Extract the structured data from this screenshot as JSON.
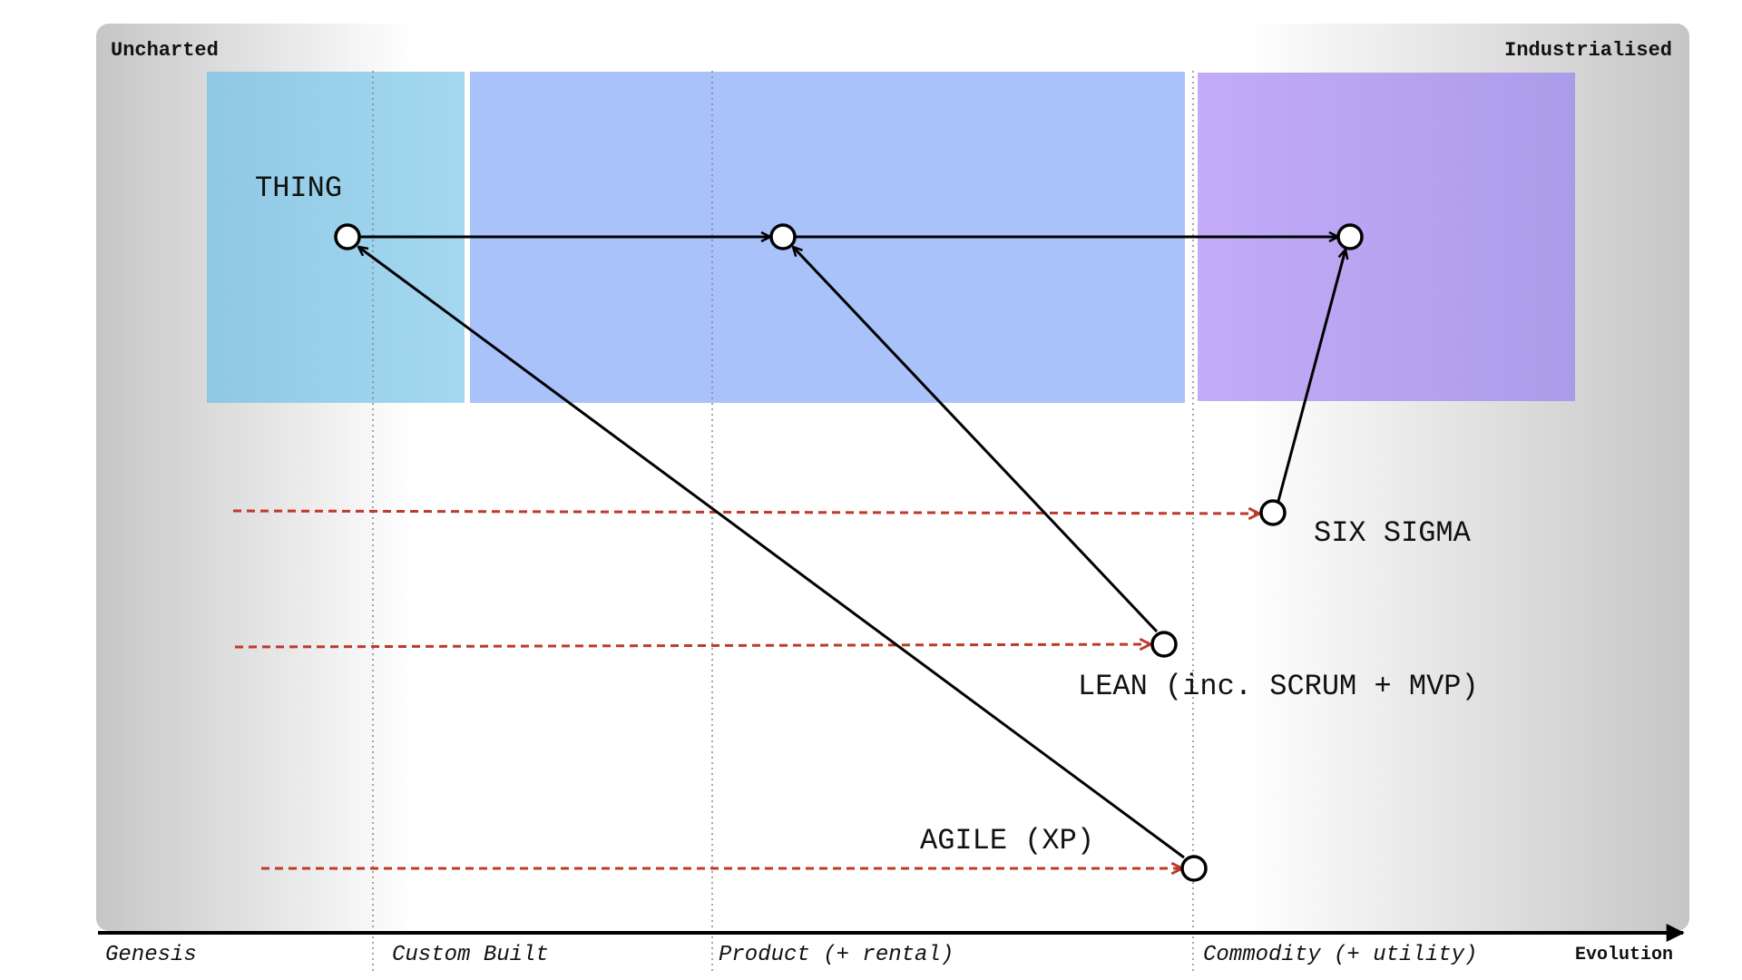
{
  "map": {
    "corner_left": "Uncharted",
    "corner_right": "Industrialised",
    "axis_label": "Evolution",
    "stages": [
      {
        "id": "genesis",
        "label": "Genesis"
      },
      {
        "id": "custom",
        "label": "Custom Built"
      },
      {
        "id": "product",
        "label": "Product (+ rental)"
      },
      {
        "id": "commodity",
        "label": "Commodity (+ utility)"
      }
    ]
  },
  "zones": [
    {
      "id": "zone-genesis",
      "color": "#91CBE8"
    },
    {
      "id": "zone-product",
      "color": "#A9C3FA"
    },
    {
      "id": "zone-commodity",
      "color": "#B9A7F5"
    }
  ],
  "nodes": [
    {
      "id": "thing",
      "label": "THING"
    },
    {
      "id": "thing-product",
      "label": ""
    },
    {
      "id": "thing-commodity",
      "label": ""
    },
    {
      "id": "six-sigma",
      "label": "SIX SIGMA"
    },
    {
      "id": "lean",
      "label": "LEAN (inc. SCRUM + MVP)"
    },
    {
      "id": "agile",
      "label": "AGILE (XP)"
    }
  ],
  "edges": [
    {
      "from": "thing",
      "to": "thing-product",
      "type": "evolution"
    },
    {
      "from": "thing-product",
      "to": "thing-commodity",
      "type": "evolution"
    },
    {
      "from": "agile",
      "to": "thing",
      "type": "applies-to"
    },
    {
      "from": "lean",
      "to": "thing-product",
      "type": "applies-to"
    },
    {
      "from": "six-sigma",
      "to": "thing-commodity",
      "type": "applies-to"
    }
  ],
  "colors": {
    "node_stroke": "#000000",
    "edge": "#000000",
    "evolution_dashed": "#C0392B",
    "background_edge": "#C8C8C8",
    "background_center": "#FFFFFF"
  }
}
